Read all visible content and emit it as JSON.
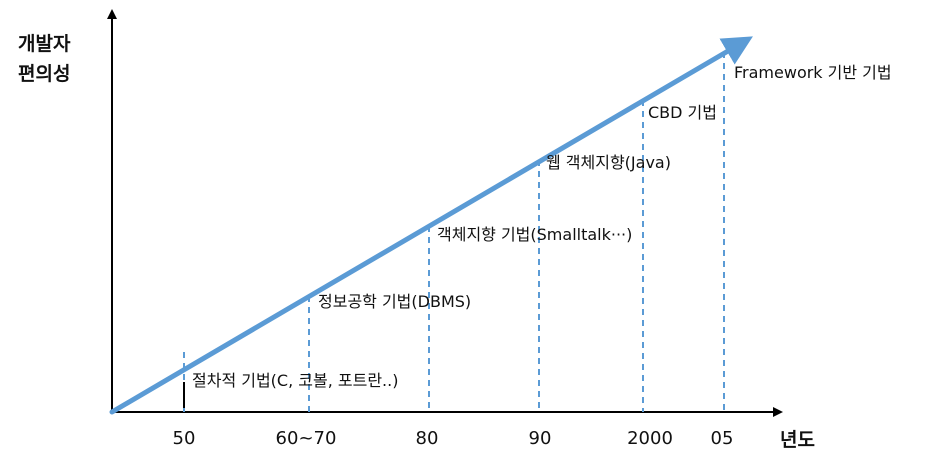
{
  "colors": {
    "trend": "#5b9bd5",
    "guide": "#5b9bd5",
    "axis": "#000000"
  },
  "y_axis_title": [
    "개발자",
    "편의성"
  ],
  "x_axis_title": "년도",
  "x_ticks": [
    "50",
    "60~70",
    "80",
    "90",
    "2000",
    "05"
  ],
  "stages": [
    "절차적 기법(C, 코볼, 포트란..)",
    "정보공학 기법(DBMS)",
    "객체지향 기법(Smalltalk···)",
    "웹 객체지향(Java)",
    "CBD 기법",
    "Framework 기반 기법"
  ]
}
